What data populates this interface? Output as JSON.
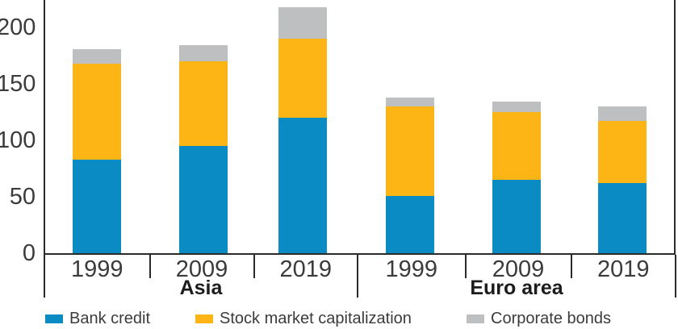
{
  "chart_data": {
    "type": "bar",
    "stacked": true,
    "title": "",
    "xlabel": "",
    "ylabel": "",
    "categories": [
      "1999",
      "2009",
      "2019",
      "1999",
      "2009",
      "2019"
    ],
    "groups": [
      {
        "label": "Asia",
        "bound_span": [
          0,
          3
        ]
      },
      {
        "label": "Euro area",
        "bound_span": [
          3,
          6
        ]
      }
    ],
    "series": [
      {
        "name": "Bank credit",
        "color": "#0a8bc4",
        "values": [
          83,
          95,
          120,
          51,
          65,
          62
        ]
      },
      {
        "name": "Stock market capitalization",
        "color": "#fdb515",
        "values": [
          85,
          75,
          70,
          79,
          60,
          55
        ]
      },
      {
        "name": "Corporate bonds",
        "color": "#bdbfc1",
        "values": [
          13,
          14,
          28,
          8,
          9,
          13
        ]
      }
    ],
    "stack_totals": [
      181,
      184,
      218,
      138,
      134,
      130
    ],
    "y_ticks": [
      0,
      50,
      100,
      150,
      200
    ],
    "ylim": [
      0,
      224
    ],
    "grid": false,
    "legend_position": "bottom"
  },
  "colors": {
    "axis": "#2b2b2b",
    "tick_text": "#3b3b3b",
    "group_label_text": "#1c1c1c",
    "background": "#ffffff"
  }
}
